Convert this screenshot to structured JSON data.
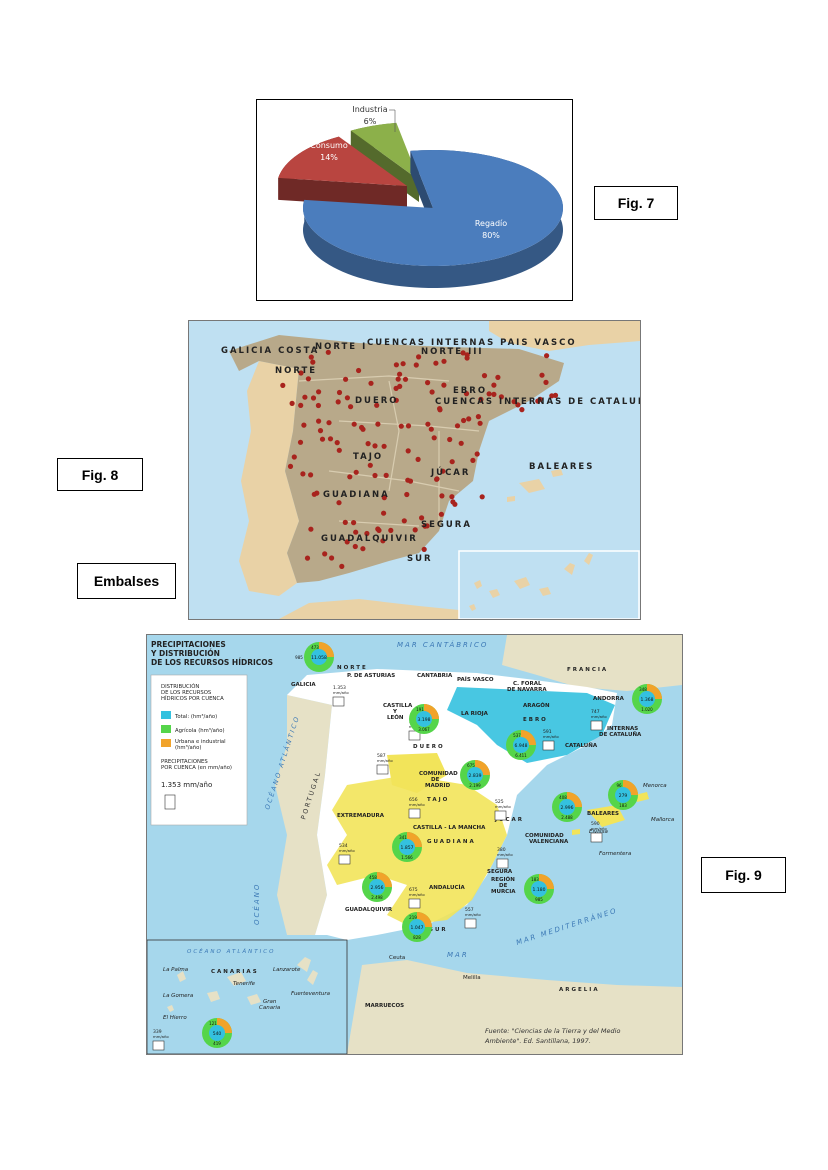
{
  "captions": {
    "fig7": "Fig. 7",
    "fig8": "Fig. 8",
    "embalses": "Embalses",
    "fig9": "Fig. 9"
  },
  "chart_data": {
    "type": "pie",
    "categories": [
      "Industria",
      "Consumo",
      "Regadío"
    ],
    "values": [
      6,
      14,
      80
    ],
    "labels": [
      "6%",
      "14%",
      "80%"
    ],
    "colors": [
      "#8cb04a",
      "#b94540",
      "#4b7dbd"
    ]
  },
  "fig8_map": {
    "labels": {
      "galicia_costa": "GALICIA COSTA",
      "norte_i": "NORTE I",
      "cuencas_pais_vasco": "CUENCAS INTERNAS PAIS VASCO",
      "norte_iii": "NORTE III",
      "norte": "NORTE",
      "duero": "DUERO",
      "ebro": "EBRO",
      "cuencas_cataluna": "CUENCAS INTERNAS DE CATALUÑA",
      "tajo": "TAJO",
      "jucar": "JÚCAR",
      "baleares": "BALEARES",
      "guadiana": "GUADIANA",
      "segura": "SEGURA",
      "guadalquivir": "GUADALQUIVIR",
      "sur": "SUR"
    },
    "colors": {
      "sea": "#bfe0f2",
      "land": "#e9d2a6",
      "basin": "#b8a98a",
      "dam": "#a8231d"
    }
  },
  "fig9_map": {
    "title": [
      "PRECIPITACIONES",
      "Y DISTRIBUCIÓN",
      "DE LOS RECURSOS HÍDRICOS"
    ],
    "legend": {
      "heading": [
        "DISTRIBUCIÓN",
        "DE LOS RECURSOS",
        "HÍDRICOS POR CUENCA"
      ],
      "total": "Total: (hm³/año)",
      "agricola": "Agrícola (hm³/año)",
      "urbana": [
        "Urbana e industrial",
        "(hm³/año)"
      ],
      "precip_heading": [
        "PRECIPITACIONES",
        "POR CUENCA (en mm/año)"
      ],
      "precip_example": "1.353 mm/año"
    },
    "sea_labels": {
      "cantabrico": "MAR CANTÁBRICO",
      "atlantico": "OCÉANO ATLÁNTICO",
      "mediterraneo": "MAR MEDITERRÁNEO",
      "oceano_v": "OCÉANO",
      "portugal": "PORTUGAL",
      "mar_sur": "MAR",
      "oceano_atl_canarias": "OCÉANO ATLÁNTICO"
    },
    "regions": {
      "galicia": "GALICIA",
      "norte": "NORTE",
      "asturias": "P. DE ASTURIAS",
      "cantabria": "CANTABRIA",
      "pais_vasco": "PAÍS VASCO",
      "navarra": [
        "C. FORAL",
        "DE NAVARRA"
      ],
      "francia": "FRANCIA",
      "andorra": "ANDORRA",
      "aragon": "ARAGÓN",
      "rioja": "LA RIOJA",
      "ebro": "EBRO",
      "castilla_leon": [
        "CASTILLA",
        "Y",
        "LEÓN"
      ],
      "duero": "DUERO",
      "cataluna": "CATALUÑA",
      "internas": [
        "INTERNAS",
        "DE CATALUÑA"
      ],
      "madrid": [
        "COMUNIDAD",
        "DE",
        "MADRID"
      ],
      "tajo": "TAJO",
      "jucar": "JÚCAR",
      "extremadura": "EXTREMADURA",
      "castilla_mancha": "CASTILLA - LA MANCHA",
      "guadiana": "GUADIANA",
      "comunidad_valenciana": [
        "COMUNIDAD",
        "VALENCIANA"
      ],
      "baleares": "BALEARES",
      "menorca": "Menorca",
      "mallorca": "Mallorca",
      "eivissa": "Eivissa",
      "formentera": "Formentera",
      "andalucia": "ANDALUCÍA",
      "segura": "SEGURA",
      "murcia": [
        "REGIÓN",
        "DE",
        "MURCIA"
      ],
      "guadalquivir": "GUADALQUIVIR",
      "sur": "SUR",
      "ceuta": "Ceuta",
      "melilla": "Melilla",
      "marruecos": "MARRUECOS",
      "argelia": "ARGELIA",
      "canarias": "CANARIAS",
      "la_palma": "La Palma",
      "lanzarote": "Lanzarote",
      "tenerife": "Tenerife",
      "la_gomera": "La Gomera",
      "fuerteventura": "Fuerteventura",
      "gran_canaria": [
        "Gran",
        "Canaria"
      ],
      "el_hierro": "El Hierro"
    },
    "pies": [
      {
        "name": "norte",
        "top": "473",
        "center": "11.058",
        "left": "985"
      },
      {
        "name": "duero",
        "top": "191",
        "center": "3.198",
        "bottom": "3.067"
      },
      {
        "name": "ebro",
        "top": "537",
        "center": "6.948",
        "bottom": "6.411"
      },
      {
        "name": "internas",
        "top": "348",
        "center": "1.368",
        "bottom": "1.020"
      },
      {
        "name": "tajo",
        "top": "675",
        "center": "2.839",
        "bottom": "2.199"
      },
      {
        "name": "jucar",
        "top": "408",
        "center": "2.996",
        "bottom": "2.488"
      },
      {
        "name": "baleares",
        "top": "96",
        "center": "279",
        "bottom": "183"
      },
      {
        "name": "guadiana",
        "top": "341",
        "center": "1.857",
        "bottom": "1.566"
      },
      {
        "name": "guadalquivir",
        "top": "458",
        "center": "2.956",
        "bottom": "2.498"
      },
      {
        "name": "segura",
        "top": "183",
        "center": "1.180",
        "bottom": "985"
      },
      {
        "name": "sur",
        "top": "219",
        "center": "1.047",
        "bottom": "828"
      },
      {
        "name": "canarias",
        "top": "121",
        "center": "540",
        "bottom": "419"
      }
    ],
    "precip": [
      {
        "name": "norte",
        "value": "1.353",
        "unit": "mm/año"
      },
      {
        "name": "duero",
        "value": "591",
        "unit": "mm/año"
      },
      {
        "name": "ebro",
        "value": "591",
        "unit": "mm/año"
      },
      {
        "name": "internas",
        "value": "747",
        "unit": "mm/año"
      },
      {
        "name": "tajo_w",
        "value": "587",
        "unit": "mm/año"
      },
      {
        "name": "tajo",
        "value": "656",
        "unit": "mm/año"
      },
      {
        "name": "jucar",
        "value": "525",
        "unit": "mm/año"
      },
      {
        "name": "baleares",
        "value": "590",
        "unit": "mm/año"
      },
      {
        "name": "guadiana",
        "value": "534",
        "unit": "mm/año"
      },
      {
        "name": "segura",
        "value": "380",
        "unit": "mm/año"
      },
      {
        "name": "guadalquivir",
        "value": "675",
        "unit": "mm/año"
      },
      {
        "name": "sur",
        "value": "557",
        "unit": "mm/año"
      },
      {
        "name": "canarias",
        "value": "339",
        "unit": "mm/año"
      }
    ],
    "source": [
      "Fuente: \"Ciencias de la Tierra y del Medio",
      "Ambiente\". Ed. Santillana, 1997."
    ],
    "colors": {
      "total": "#34c1df",
      "agricola": "#55d54a",
      "urbana": "#f1a32a",
      "yellow": "#f2e45a",
      "sea": "#a6d7ec",
      "land": "#e6e1c6"
    }
  }
}
